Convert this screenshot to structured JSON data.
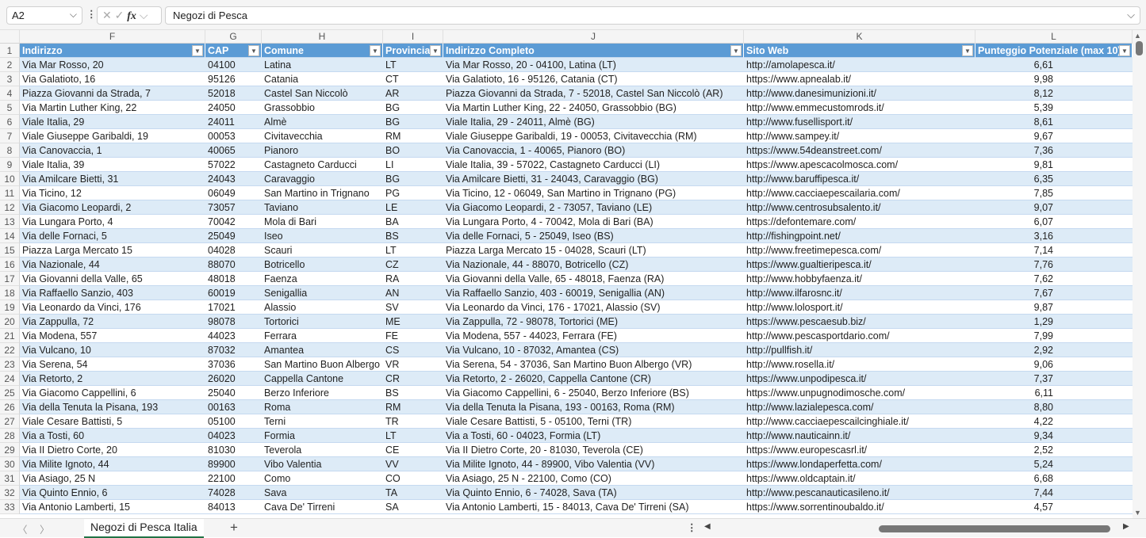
{
  "name_box": "A2",
  "formula_bar": "Negozi di Pesca",
  "columns": [
    {
      "letter": "F",
      "header": "Indirizzo"
    },
    {
      "letter": "G",
      "header": "CAP"
    },
    {
      "letter": "H",
      "header": "Comune"
    },
    {
      "letter": "I",
      "header": "Provincia"
    },
    {
      "letter": "J",
      "header": "Indirizzo Completo"
    },
    {
      "letter": "K",
      "header": "Sito Web"
    },
    {
      "letter": "L",
      "header": "Punteggio Potenziale (max 10)"
    }
  ],
  "rows": [
    [
      "2",
      "Via Mar Rosso, 20",
      "04100",
      "Latina",
      "LT",
      "Via Mar Rosso, 20 - 04100, Latina (LT)",
      "http://amolapesca.it/",
      "6,61"
    ],
    [
      "3",
      "Via Galatioto, 16",
      "95126",
      "Catania",
      "CT",
      "Via Galatioto, 16 - 95126, Catania (CT)",
      "https://www.apnealab.it/",
      "9,98"
    ],
    [
      "4",
      "Piazza Giovanni da Strada, 7",
      "52018",
      "Castel San Niccolò",
      "AR",
      "Piazza Giovanni da Strada, 7 - 52018, Castel San Niccolò (AR)",
      "http://www.danesimunizioni.it/",
      "8,12"
    ],
    [
      "5",
      "Via Martin Luther King, 22",
      "24050",
      "Grassobbio",
      "BG",
      "Via Martin Luther King, 22 - 24050, Grassobbio (BG)",
      "http://www.emmecustomrods.it/",
      "5,39"
    ],
    [
      "6",
      "Viale Italia, 29",
      "24011",
      "Almè",
      "BG",
      "Viale Italia, 29 - 24011, Almè (BG)",
      "http://www.fusellisport.it/",
      "8,61"
    ],
    [
      "7",
      "Viale Giuseppe Garibaldi, 19",
      "00053",
      "Civitavecchia",
      "RM",
      "Viale Giuseppe Garibaldi, 19 - 00053, Civitavecchia (RM)",
      "http://www.sampey.it/",
      "9,67"
    ],
    [
      "8",
      "Via Canovaccia, 1",
      "40065",
      "Pianoro",
      "BO",
      "Via Canovaccia, 1 - 40065, Pianoro (BO)",
      "https://www.54deanstreet.com/",
      "7,36"
    ],
    [
      "9",
      "Viale Italia, 39",
      "57022",
      "Castagneto Carducci",
      "LI",
      "Viale Italia, 39 - 57022, Castagneto Carducci (LI)",
      "https://www.apescacolmosca.com/",
      "9,81"
    ],
    [
      "10",
      "Via Amilcare Bietti, 31",
      "24043",
      "Caravaggio",
      "BG",
      "Via Amilcare Bietti, 31 - 24043, Caravaggio (BG)",
      "http://www.baruffipesca.it/",
      "6,35"
    ],
    [
      "11",
      "Via Ticino, 12",
      "06049",
      "San Martino in Trignano",
      "PG",
      "Via Ticino, 12 - 06049, San Martino in Trignano (PG)",
      "http://www.cacciaepescailaria.com/",
      "7,85"
    ],
    [
      "12",
      "Via Giacomo Leopardi, 2",
      "73057",
      "Taviano",
      "LE",
      "Via Giacomo Leopardi, 2 - 73057, Taviano (LE)",
      "http://www.centrosubsalento.it/",
      "9,07"
    ],
    [
      "13",
      "Via Lungara Porto, 4",
      "70042",
      "Mola di Bari",
      "BA",
      "Via Lungara Porto, 4 - 70042, Mola di Bari (BA)",
      "https://defontemare.com/",
      "6,07"
    ],
    [
      "14",
      "Via delle Fornaci, 5",
      "25049",
      "Iseo",
      "BS",
      "Via delle Fornaci, 5 - 25049, Iseo (BS)",
      "http://fishingpoint.net/",
      "3,16"
    ],
    [
      "15",
      "Piazza Larga Mercato 15",
      "04028",
      "Scauri",
      "LT",
      "Piazza Larga Mercato 15 - 04028, Scauri (LT)",
      "http://www.freetimepesca.com/",
      "7,14"
    ],
    [
      "16",
      "Via Nazionale, 44",
      "88070",
      "Botricello",
      "CZ",
      "Via Nazionale, 44 - 88070, Botricello (CZ)",
      "https://www.gualtieripesca.it/",
      "7,76"
    ],
    [
      "17",
      "Via Giovanni della Valle, 65",
      "48018",
      "Faenza",
      "RA",
      "Via Giovanni della Valle, 65 - 48018, Faenza (RA)",
      "http://www.hobbyfaenza.it/",
      "7,62"
    ],
    [
      "18",
      "Via Raffaello Sanzio, 403",
      "60019",
      "Senigallia",
      "AN",
      "Via Raffaello Sanzio, 403 - 60019, Senigallia (AN)",
      "http://www.ilfarosnc.it/",
      "7,67"
    ],
    [
      "19",
      "Via Leonardo da Vinci, 176",
      "17021",
      "Alassio",
      "SV",
      "Via Leonardo da Vinci, 176 - 17021, Alassio (SV)",
      "http://www.lolosport.it/",
      "9,87"
    ],
    [
      "20",
      "Via Zappulla, 72",
      "98078",
      "Tortorici",
      "ME",
      "Via Zappulla, 72 - 98078, Tortorici (ME)",
      "https://www.pescaesub.biz/",
      "1,29"
    ],
    [
      "21",
      "Via Modena, 557",
      "44023",
      "Ferrara",
      "FE",
      "Via Modena, 557 - 44023, Ferrara (FE)",
      "http://www.pescasportdario.com/",
      "7,99"
    ],
    [
      "22",
      "Via Vulcano, 10",
      "87032",
      "Amantea",
      "CS",
      "Via Vulcano, 10 - 87032, Amantea (CS)",
      "http://pullfish.it/",
      "2,92"
    ],
    [
      "23",
      "Via Serena, 54",
      "37036",
      "San Martino Buon Albergo",
      "VR",
      "Via Serena, 54 - 37036, San Martino Buon Albergo (VR)",
      "http://www.rosella.it/",
      "9,06"
    ],
    [
      "24",
      "Via Retorto, 2",
      "26020",
      "Cappella Cantone",
      "CR",
      "Via Retorto, 2 - 26020, Cappella Cantone (CR)",
      "https://www.unpodipesca.it/",
      "7,37"
    ],
    [
      "25",
      "Via Giacomo Cappellini, 6",
      "25040",
      "Berzo Inferiore",
      "BS",
      "Via Giacomo Cappellini, 6 - 25040, Berzo Inferiore (BS)",
      "https://www.unpugnodimosche.com/",
      "6,11"
    ],
    [
      "26",
      "Via della Tenuta la Pisana, 193",
      "00163",
      "Roma",
      "RM",
      "Via della Tenuta la Pisana, 193 - 00163, Roma (RM)",
      "http://www.lazialepesca.com/",
      "8,80"
    ],
    [
      "27",
      "Viale Cesare Battisti, 5",
      "05100",
      "Terni",
      "TR",
      "Viale Cesare Battisti, 5 - 05100, Terni (TR)",
      "http://www.cacciaepescailcinghiale.it/",
      "4,22"
    ],
    [
      "28",
      "Via a Tosti, 60",
      "04023",
      "Formia",
      "LT",
      "Via a Tosti, 60 - 04023, Formia (LT)",
      "http://www.nauticainn.it/",
      "9,34"
    ],
    [
      "29",
      "Via II Dietro Corte, 20",
      "81030",
      "Teverola",
      "CE",
      "Via II Dietro Corte, 20 - 81030, Teverola (CE)",
      "https://www.europescasrl.it/",
      "2,52"
    ],
    [
      "30",
      "Via Milite Ignoto, 44",
      "89900",
      "Vibo Valentia",
      "VV",
      "Via Milite Ignoto, 44 - 89900, Vibo Valentia (VV)",
      "https://www.londaperfetta.com/",
      "5,24"
    ],
    [
      "31",
      "Via Asiago, 25 N",
      "22100",
      "Como",
      "CO",
      "Via Asiago, 25 N - 22100, Como (CO)",
      "https://www.oldcaptain.it/",
      "6,68"
    ],
    [
      "32",
      "Via Quinto Ennio, 6",
      "74028",
      "Sava",
      "TA",
      "Via Quinto Ennio, 6 - 74028, Sava (TA)",
      "http://www.pescanauticasileno.it/",
      "7,44"
    ],
    [
      "33",
      "Via Antonio Lamberti, 15",
      "84013",
      "Cava De' Tirreni",
      "SA",
      "Via Antonio Lamberti, 15 - 84013, Cava De' Tirreni (SA)",
      "https://www.sorrentinoubaldo.it/",
      "4,57"
    ]
  ],
  "sheet_tab": "Negozi di Pesca Italia",
  "add_sheet": "+",
  "colors": {
    "header": "#5b9bd5",
    "band": "#ddebf7",
    "active_tab": "#217346"
  }
}
